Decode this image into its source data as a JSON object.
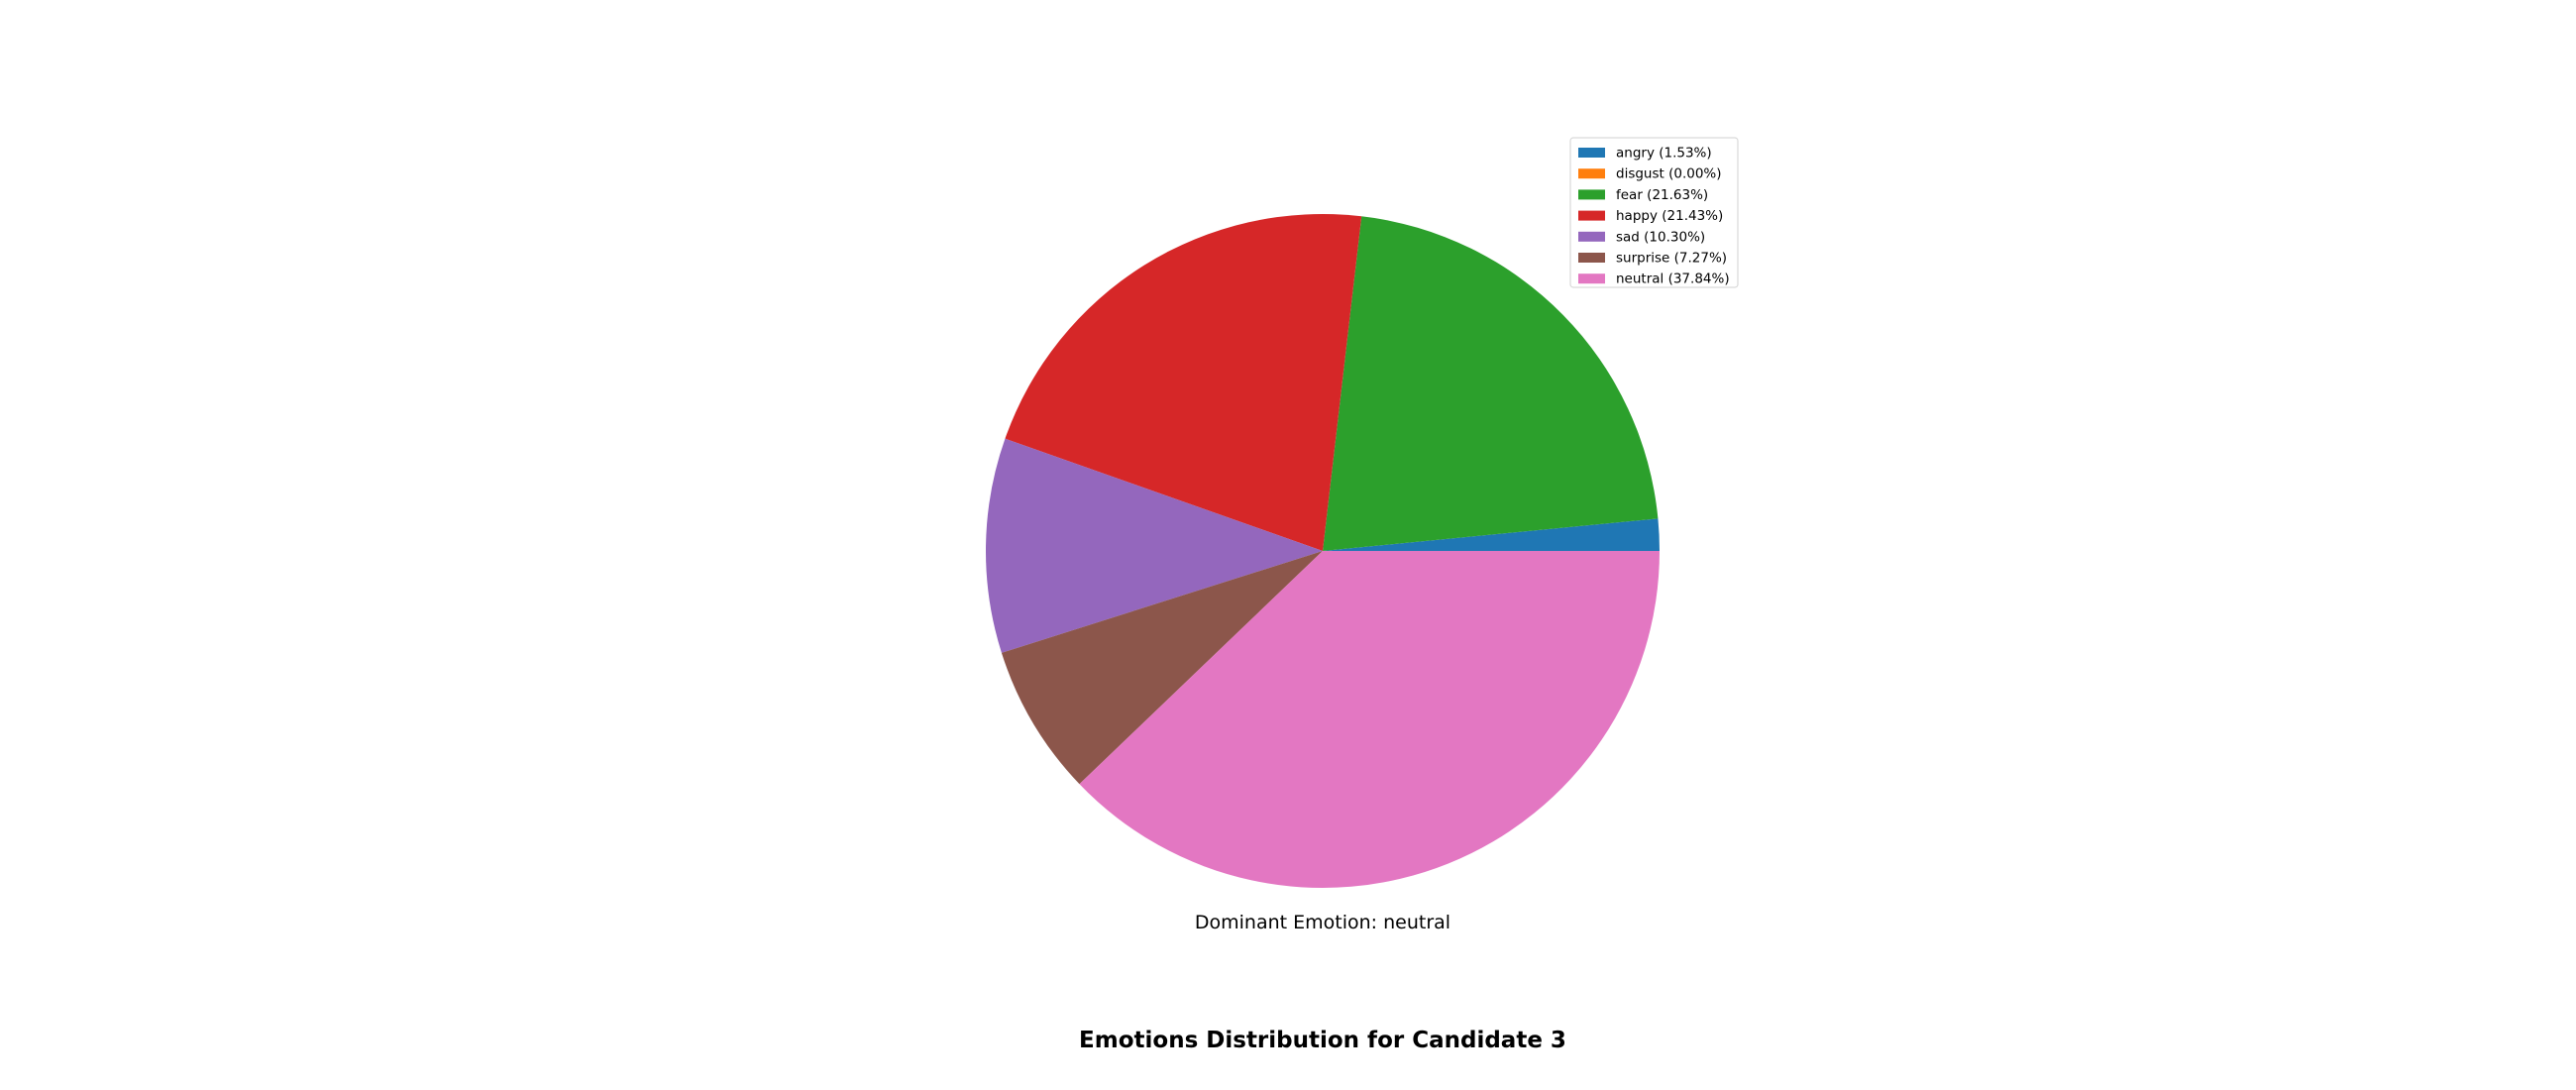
{
  "chart_data": {
    "type": "pie",
    "title": "Emotions Distribution for Candidate 3",
    "annotation": "Dominant Emotion: neutral",
    "legend_position": "upper-right",
    "start_angle_degrees": 0,
    "direction": "counterclockwise",
    "slices": [
      {
        "label": "angry",
        "value": 1.53,
        "legend_label": "angry (1.53%)",
        "color": "#1f77b4"
      },
      {
        "label": "disgust",
        "value": 0.0,
        "legend_label": "disgust (0.00%)",
        "color": "#ff7f0e"
      },
      {
        "label": "fear",
        "value": 21.63,
        "legend_label": "fear (21.63%)",
        "color": "#2ca02c"
      },
      {
        "label": "happy",
        "value": 21.43,
        "legend_label": "happy (21.43%)",
        "color": "#d62728"
      },
      {
        "label": "sad",
        "value": 10.3,
        "legend_label": "sad (10.30%)",
        "color": "#9467bd"
      },
      {
        "label": "surprise",
        "value": 7.27,
        "legend_label": "surprise (7.27%)",
        "color": "#8c564b"
      },
      {
        "label": "neutral",
        "value": 37.84,
        "legend_label": "neutral (37.84%)",
        "color": "#e377c2"
      }
    ]
  }
}
